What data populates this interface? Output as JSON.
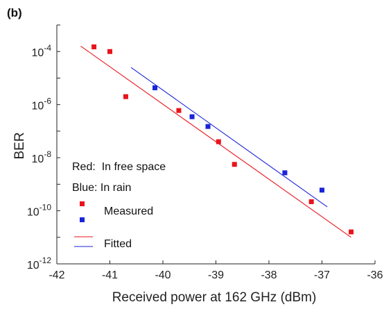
{
  "chart_data": {
    "type": "scatter",
    "panel_label": "(b)",
    "xlabel": "Received power at 162 GHz (dBm)",
    "ylabel": "BER",
    "xlim": [
      -42,
      -36
    ],
    "ylim_log10": [
      -12,
      -3
    ],
    "y_scale": "log",
    "x_ticks": [
      -42,
      -41,
      -40,
      -39,
      -38,
      -37,
      -36
    ],
    "x_tick_labels": [
      "-42",
      "-41",
      "-40",
      "-39",
      "-38",
      "-37",
      "-36"
    ],
    "y_ticks": [
      {
        "exp": -4,
        "base": "10",
        "sup": "-4"
      },
      {
        "exp": -6,
        "base": "10",
        "sup": "-6"
      },
      {
        "exp": -8,
        "base": "10",
        "sup": "-8"
      },
      {
        "exp": -10,
        "base": "10",
        "sup": "-10"
      },
      {
        "exp": -12,
        "base": "10",
        "sup": "-12"
      }
    ],
    "grid": false,
    "legend_position": "bottom-left",
    "annotations": [
      "Red:  In free space",
      "Blue: In rain"
    ],
    "legend": [
      {
        "label": "Measured",
        "kind": "markers"
      },
      {
        "label": "Fitted",
        "kind": "lines"
      }
    ],
    "series": [
      {
        "color": "#e8141b",
        "measured": {
          "x": [
            -41.3,
            -41.0,
            -40.7,
            -39.7,
            -38.95,
            -38.65,
            -37.2,
            -36.45
          ],
          "y": [
            0.00015,
            0.0001,
            2e-06,
            6e-07,
            4e-08,
            5.6e-09,
            2.2e-10,
            1.6e-11
          ]
        },
        "fitted": {
          "x": [
            -41.55,
            -36.45
          ],
          "y": [
            0.00016,
            1e-11
          ]
        }
      },
      {
        "color": "#1a24d8",
        "measured": {
          "x": [
            -40.15,
            -39.45,
            -39.15,
            -37.7,
            -37.0
          ],
          "y": [
            4.3e-06,
            3.5e-07,
            1.5e-07,
            2.7e-09,
            6e-10
          ]
        },
        "fitted": {
          "x": [
            -40.6,
            -36.9
          ],
          "y": [
            2.5e-05,
            1.4e-10
          ]
        }
      }
    ]
  }
}
